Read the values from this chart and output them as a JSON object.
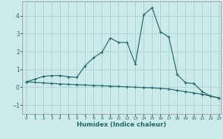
{
  "xlabel": "Humidex (Indice chaleur)",
  "background_color": "#cceae8",
  "grid_color": "#aad4d2",
  "line_color": "#1a6b6b",
  "xlim": [
    -0.5,
    23.2
  ],
  "ylim": [
    -1.5,
    4.8
  ],
  "yticks": [
    -1,
    0,
    1,
    2,
    3,
    4
  ],
  "xticks": [
    0,
    1,
    2,
    3,
    4,
    5,
    6,
    7,
    8,
    9,
    10,
    11,
    12,
    13,
    14,
    15,
    16,
    17,
    18,
    19,
    20,
    21,
    22,
    23
  ],
  "series1_x": [
    0,
    1,
    2,
    3,
    4,
    5,
    6,
    7,
    8,
    9,
    10,
    11,
    12,
    13,
    14,
    15,
    16,
    17,
    18,
    19,
    20,
    21,
    22,
    23
  ],
  "series1_y": [
    0.3,
    0.45,
    0.6,
    0.65,
    0.65,
    0.58,
    0.55,
    1.2,
    1.65,
    1.95,
    2.75,
    2.5,
    2.5,
    1.3,
    4.05,
    4.45,
    3.1,
    2.8,
    0.7,
    0.25,
    0.2,
    -0.25,
    -0.5,
    -0.6
  ],
  "series2_x": [
    0,
    1,
    2,
    3,
    4,
    5,
    6,
    7,
    8,
    9,
    10,
    11,
    12,
    13,
    14,
    15,
    16,
    17,
    18,
    19,
    20,
    21,
    22,
    23
  ],
  "series2_y": [
    0.3,
    0.27,
    0.24,
    0.21,
    0.18,
    0.16,
    0.14,
    0.12,
    0.1,
    0.08,
    0.06,
    0.04,
    0.02,
    0.0,
    -0.02,
    -0.04,
    -0.07,
    -0.1,
    -0.18,
    -0.25,
    -0.32,
    -0.4,
    -0.5,
    -0.62
  ]
}
